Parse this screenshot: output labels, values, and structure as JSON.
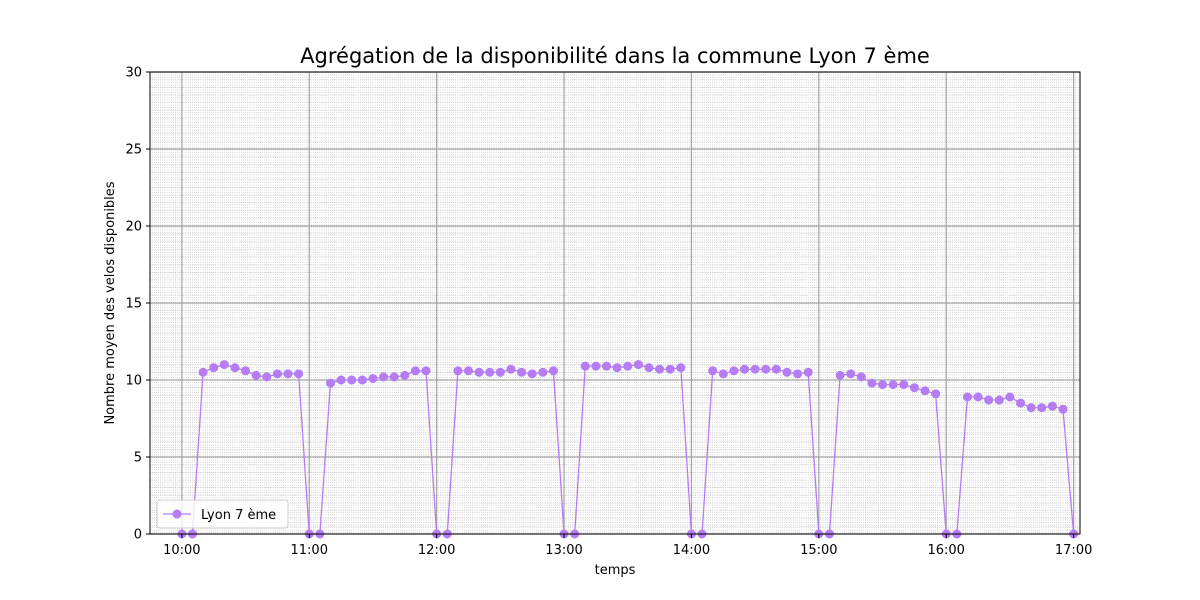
{
  "chart_data": {
    "type": "line",
    "title": "Agrégation de la disponibilité dans la commune Lyon 7 ème",
    "xlabel": "temps",
    "ylabel": "Nombre moyen des velos disponibles",
    "ylim": [
      0,
      30
    ],
    "yticks": [
      "0",
      "5",
      "10",
      "15",
      "20",
      "25",
      "30"
    ],
    "xlim_minutes": [
      585,
      1023
    ],
    "xticks": [
      "10:00",
      "11:00",
      "12:00",
      "13:00",
      "14:00",
      "15:00",
      "16:00",
      "17:00"
    ],
    "grid": true,
    "minor_grid": true,
    "legend_position": "lower-left",
    "color": "#b57cf4",
    "series": [
      {
        "name": "Lyon 7 ème",
        "x": [
          "10:00",
          "10:05",
          "10:10",
          "10:15",
          "10:20",
          "10:25",
          "10:30",
          "10:35",
          "10:40",
          "10:45",
          "10:50",
          "10:55",
          "11:00",
          "11:05",
          "11:10",
          "11:15",
          "11:20",
          "11:25",
          "11:30",
          "11:35",
          "11:40",
          "11:45",
          "11:50",
          "11:55",
          "12:00",
          "12:05",
          "12:10",
          "12:15",
          "12:20",
          "12:25",
          "12:30",
          "12:35",
          "12:40",
          "12:45",
          "12:50",
          "12:55",
          "13:00",
          "13:05",
          "13:10",
          "13:15",
          "13:20",
          "13:25",
          "13:30",
          "13:35",
          "13:40",
          "13:45",
          "13:50",
          "13:55",
          "14:00",
          "14:05",
          "14:10",
          "14:15",
          "14:20",
          "14:25",
          "14:30",
          "14:35",
          "14:40",
          "14:45",
          "14:50",
          "14:55",
          "15:00",
          "15:05",
          "15:10",
          "15:15",
          "15:20",
          "15:25",
          "15:30",
          "15:35",
          "15:40",
          "15:45",
          "15:50",
          "15:55",
          "16:00",
          "16:05",
          "16:10",
          "16:15",
          "16:20",
          "16:25",
          "16:30",
          "16:35",
          "16:40",
          "16:45",
          "16:50",
          "16:55",
          "17:00"
        ],
        "values": [
          0,
          0,
          10.5,
          10.8,
          11.0,
          10.8,
          10.6,
          10.3,
          10.2,
          10.4,
          10.4,
          10.4,
          0,
          0,
          9.8,
          10.0,
          10.0,
          10.0,
          10.1,
          10.2,
          10.2,
          10.3,
          10.6,
          10.6,
          0,
          0,
          10.6,
          10.6,
          10.5,
          10.5,
          10.5,
          10.7,
          10.5,
          10.4,
          10.5,
          10.6,
          0,
          0,
          10.9,
          10.9,
          10.9,
          10.8,
          10.9,
          11.0,
          10.8,
          10.7,
          10.7,
          10.8,
          0,
          0,
          10.6,
          10.4,
          10.6,
          10.7,
          10.7,
          10.7,
          10.7,
          10.5,
          10.4,
          10.5,
          0,
          0,
          10.3,
          10.4,
          10.2,
          9.8,
          9.7,
          9.7,
          9.7,
          9.5,
          9.3,
          9.1,
          0,
          0,
          8.9,
          8.9,
          8.7,
          8.7,
          8.9,
          8.5,
          8.2,
          8.2,
          8.3,
          8.1,
          0
        ]
      }
    ]
  }
}
